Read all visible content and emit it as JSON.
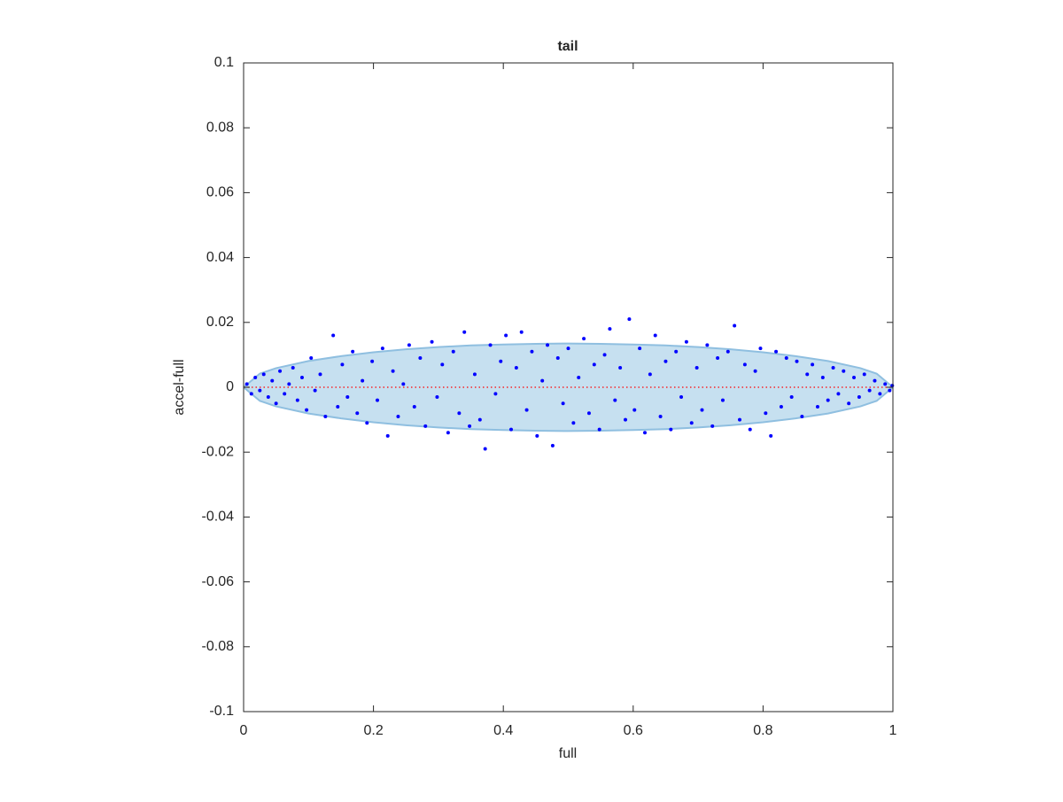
{
  "chart_data": {
    "type": "scatter",
    "title": "tail",
    "x_label": "full",
    "y_label": "accel-full",
    "xlim": [
      0,
      1
    ],
    "ylim": [
      -0.1,
      0.1
    ],
    "xticks": [
      0,
      0.2,
      0.4,
      0.6,
      0.8,
      1
    ],
    "yticks": [
      -0.1,
      -0.08,
      -0.06,
      -0.04,
      -0.02,
      0,
      0.02,
      0.04,
      0.06,
      0.08,
      0.1
    ],
    "series": [
      {
        "kind": "band",
        "color": "#c6e0f0",
        "edge_color": "#8fbfe0",
        "x": [
          0,
          0.025,
          0.05,
          0.1,
          0.15,
          0.2,
          0.25,
          0.3,
          0.35,
          0.4,
          0.45,
          0.5,
          0.55,
          0.6,
          0.65,
          0.7,
          0.75,
          0.8,
          0.85,
          0.9,
          0.95,
          0.975,
          1
        ],
        "upper": [
          0,
          0.0042,
          0.0059,
          0.0081,
          0.0096,
          0.0108,
          0.0117,
          0.0124,
          0.0129,
          0.0132,
          0.0134,
          0.0135,
          0.0134,
          0.0132,
          0.0129,
          0.0124,
          0.0117,
          0.0108,
          0.0096,
          0.0081,
          0.0059,
          0.0042,
          0
        ],
        "lower": [
          0,
          -0.0042,
          -0.0059,
          -0.0081,
          -0.0096,
          -0.0108,
          -0.0117,
          -0.0124,
          -0.0129,
          -0.0132,
          -0.0134,
          -0.0135,
          -0.0134,
          -0.0132,
          -0.0129,
          -0.0124,
          -0.0117,
          -0.0108,
          -0.0096,
          -0.0081,
          -0.0059,
          -0.0042,
          0
        ]
      },
      {
        "kind": "line",
        "color": "#ff0000",
        "x": [
          0,
          1
        ],
        "values": [
          0,
          0
        ]
      },
      {
        "kind": "points",
        "color": "#0000ff",
        "x": [
          0.005,
          0.012,
          0.018,
          0.025,
          0.031,
          0.038,
          0.044,
          0.05,
          0.056,
          0.063,
          0.07,
          0.076,
          0.083,
          0.09,
          0.097,
          0.104,
          0.11,
          0.118,
          0.126,
          0.138,
          0.145,
          0.152,
          0.16,
          0.168,
          0.175,
          0.183,
          0.19,
          0.198,
          0.206,
          0.214,
          0.222,
          0.23,
          0.238,
          0.246,
          0.255,
          0.263,
          0.272,
          0.28,
          0.29,
          0.298,
          0.306,
          0.315,
          0.323,
          0.332,
          0.34,
          0.348,
          0.356,
          0.364,
          0.372,
          0.38,
          0.388,
          0.396,
          0.404,
          0.412,
          0.42,
          0.428,
          0.436,
          0.444,
          0.452,
          0.46,
          0.468,
          0.476,
          0.484,
          0.492,
          0.5,
          0.508,
          0.516,
          0.524,
          0.532,
          0.54,
          0.548,
          0.556,
          0.564,
          0.572,
          0.58,
          0.588,
          0.594,
          0.602,
          0.61,
          0.618,
          0.626,
          0.634,
          0.642,
          0.65,
          0.658,
          0.666,
          0.674,
          0.682,
          0.69,
          0.698,
          0.706,
          0.714,
          0.722,
          0.73,
          0.738,
          0.746,
          0.756,
          0.764,
          0.772,
          0.78,
          0.788,
          0.796,
          0.804,
          0.812,
          0.82,
          0.828,
          0.836,
          0.844,
          0.852,
          0.86,
          0.868,
          0.876,
          0.884,
          0.892,
          0.9,
          0.908,
          0.916,
          0.924,
          0.932,
          0.94,
          0.948,
          0.956,
          0.964,
          0.972,
          0.98,
          0.988,
          0.995,
          0.999
        ],
        "values": [
          0.001,
          -0.002,
          0.003,
          -0.001,
          0.004,
          -0.003,
          0.002,
          -0.005,
          0.005,
          -0.002,
          0.001,
          0.006,
          -0.004,
          0.003,
          -0.007,
          0.009,
          -0.001,
          0.004,
          -0.009,
          0.016,
          -0.006,
          0.007,
          -0.003,
          0.011,
          -0.008,
          0.002,
          -0.011,
          0.008,
          -0.004,
          0.012,
          -0.015,
          0.005,
          -0.009,
          0.001,
          0.013,
          -0.006,
          0.009,
          -0.012,
          0.014,
          -0.003,
          0.007,
          -0.014,
          0.011,
          -0.008,
          0.017,
          -0.012,
          0.004,
          -0.01,
          -0.019,
          0.013,
          -0.002,
          0.008,
          0.016,
          -0.013,
          0.006,
          0.017,
          -0.007,
          0.011,
          -0.015,
          0.002,
          0.013,
          -0.018,
          0.009,
          -0.005,
          0.012,
          -0.011,
          0.003,
          0.015,
          -0.008,
          0.007,
          -0.013,
          0.01,
          0.018,
          -0.004,
          0.006,
          -0.01,
          0.021,
          -0.007,
          0.012,
          -0.014,
          0.004,
          0.016,
          -0.009,
          0.008,
          -0.013,
          0.011,
          -0.003,
          0.014,
          -0.011,
          0.006,
          -0.007,
          0.013,
          -0.012,
          0.009,
          -0.004,
          0.011,
          0.019,
          -0.01,
          0.007,
          -0.013,
          0.005,
          0.012,
          -0.008,
          -0.015,
          0.011,
          -0.006,
          0.009,
          -0.003,
          0.008,
          -0.009,
          0.004,
          0.007,
          -0.006,
          0.003,
          -0.004,
          0.006,
          -0.002,
          0.005,
          -0.005,
          0.003,
          -0.003,
          0.004,
          -0.001,
          0.002,
          -0.002,
          0.001,
          -0.001,
          0.0005
        ]
      }
    ]
  }
}
